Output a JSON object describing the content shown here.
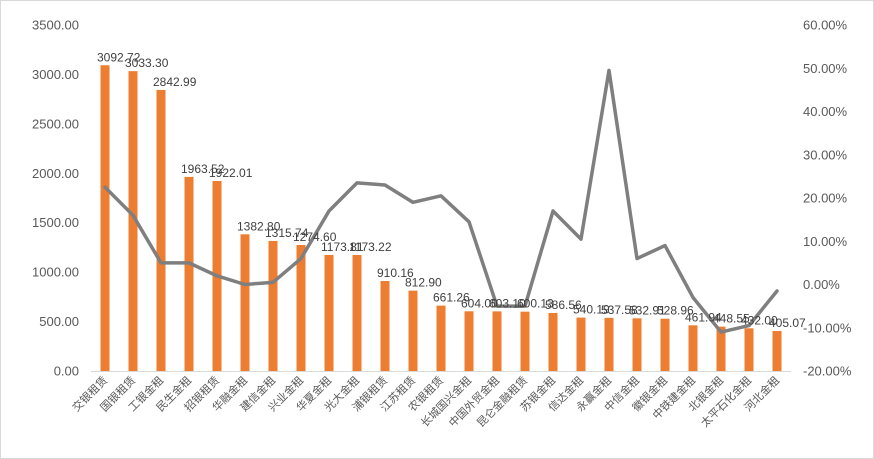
{
  "chart_data": {
    "type": "bar",
    "categories": [
      "交银租赁",
      "国银租赁",
      "工银金租",
      "民生金租",
      "招银租赁",
      "华融金租",
      "建信金租",
      "兴业金租",
      "华夏金租",
      "光大金租",
      "浦银租赁",
      "江苏租赁",
      "农银租赁",
      "长城国兴金租",
      "中国外贸金租",
      "昆仑金融租赁",
      "苏银金租",
      "信达金租",
      "永赢金租",
      "中信金租",
      "徽银金租",
      "中铁建金租",
      "北银金租",
      "太平石化金租",
      "河北金租"
    ],
    "series": [
      {
        "type": "bar",
        "axis": "left",
        "values": [
          3092.72,
          3033.3,
          2842.99,
          1963.52,
          1922.01,
          1382.8,
          1315.74,
          1274.6,
          1173.81,
          1173.22,
          910.16,
          812.9,
          661.26,
          604.0,
          603.1,
          600.13,
          586.56,
          540.19,
          537.58,
          532.91,
          528.96,
          461.94,
          448.55,
          432.0,
          405.07
        ],
        "labels": [
          "3092.72",
          "3033.30",
          "2842.99",
          "1963.52",
          "1922.01",
          "1382.80",
          "1315.74",
          "1274.60",
          "1173.81",
          "1173.22",
          "910.16",
          "812.90",
          "661.26",
          "604.00",
          "603.10",
          "600.13",
          "586.56",
          "540.19",
          "537.58",
          "532.91",
          "528.96",
          "461.94",
          "448.55",
          "432.00",
          "405.07"
        ]
      },
      {
        "type": "line",
        "axis": "right",
        "unit": "%",
        "values": [
          22.5,
          16.0,
          5.0,
          5.0,
          2.0,
          0.0,
          0.5,
          6.0,
          17.0,
          23.5,
          23.0,
          19.0,
          20.5,
          14.5,
          -5.0,
          -5.0,
          17.0,
          10.5,
          49.5,
          6.0,
          9.0,
          -3.0,
          -11.0,
          -9.5,
          -1.5
        ]
      }
    ],
    "y_left": {
      "min": 0,
      "max": 3500,
      "step": 500,
      "decimals": 2
    },
    "y_right": {
      "min": -20,
      "max": 60,
      "step": 10,
      "decimals": 2,
      "suffix": "%"
    },
    "colors": {
      "bar": "#ed7d31",
      "line": "#7f7f7f",
      "text": "#595959",
      "label": "#404040"
    },
    "grid": false,
    "legend": false
  }
}
